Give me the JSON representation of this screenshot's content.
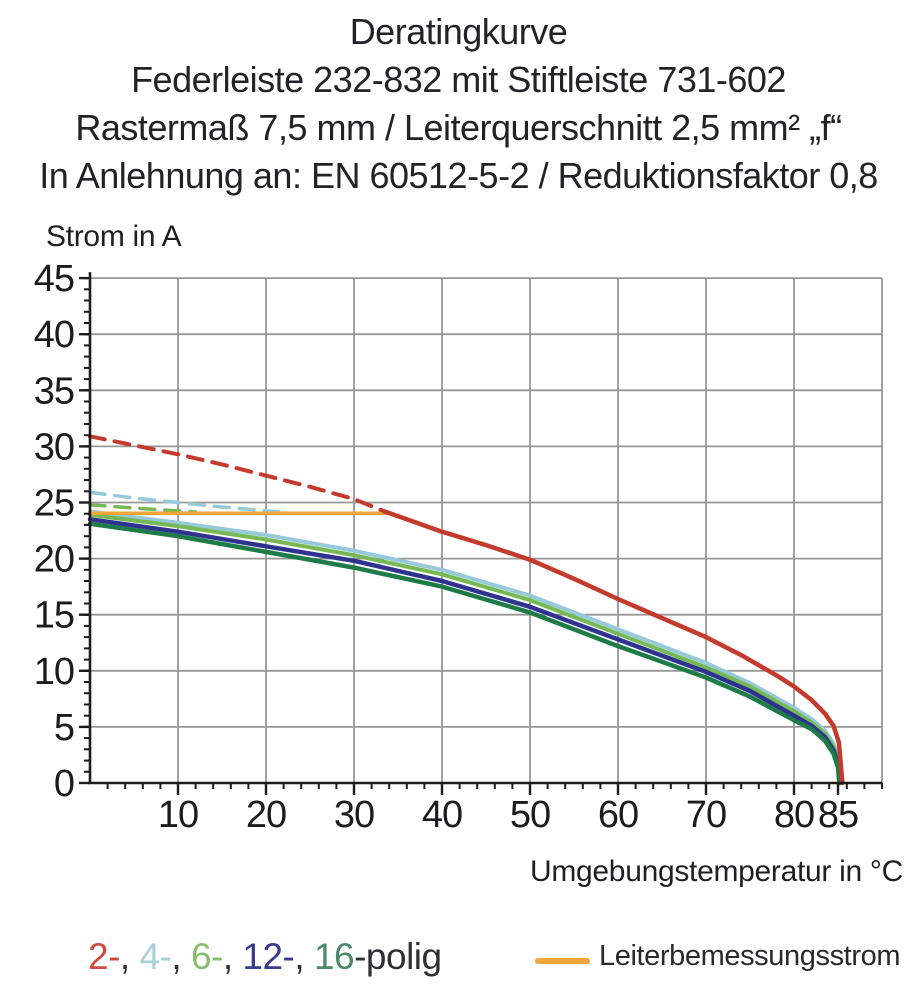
{
  "header": {
    "lines": [
      "Deratingkurve",
      "Federleiste 232-832 mit Stiftleiste 731-602",
      "Rastermaß 7,5 mm / Leiterquerschnitt 2,5 mm² „f“",
      "In Anlehnung an: EN 60512-5-2 / Reduktionsfaktor 0,8"
    ]
  },
  "legend": {
    "pole_items": [
      {
        "text": "2-",
        "color": "#cf4a3e",
        "after": ", "
      },
      {
        "text": "4-",
        "color": "#a9cfdb",
        "after": ", "
      },
      {
        "text": "6-",
        "color": "#85bd68",
        "after": ", "
      },
      {
        "text": "12-",
        "color": "#3a3a8f",
        "after": ", "
      },
      {
        "text": "16",
        "color": "#4b8a68",
        "after": "-polig"
      }
    ],
    "separator_color": "#2f2f34",
    "rated_label": "Leiterbemessungsstrom",
    "rated_color": "#f2a53d"
  },
  "chart_data": {
    "type": "line",
    "title": "Deratingkurve",
    "xlabel": "Umgebungstemperatur in °C",
    "ylabel": "Strom in A",
    "xlim": [
      0,
      90
    ],
    "ylim": [
      0,
      45
    ],
    "xticks_major": [
      10,
      20,
      30,
      40,
      50,
      60,
      70,
      80,
      85
    ],
    "xtick_minor_step": 2,
    "yticks_major": [
      0,
      5,
      10,
      15,
      20,
      25,
      30,
      35,
      40,
      45
    ],
    "ytick_minor_step": 1,
    "grid": {
      "x_step": 10,
      "y_step": 5,
      "color": "#979797"
    },
    "axis_color": "#1c1c1e",
    "rated_current_line": {
      "label": "Leiterbemessungsstrom",
      "value": 24.05,
      "x_from": 0,
      "x_to": 34,
      "color": "#f2a53d"
    },
    "series": [
      {
        "name": "4-polig",
        "color": "#96c9d9",
        "width": 4,
        "dashed": [
          [
            0,
            25.9
          ],
          [
            5,
            25.4
          ],
          [
            10,
            25.0
          ],
          [
            15,
            24.6
          ],
          [
            21.5,
            24.15
          ]
        ],
        "solid": [
          [
            0,
            24.2
          ],
          [
            10,
            23.2
          ],
          [
            20,
            22.1
          ],
          [
            30,
            20.7
          ],
          [
            40,
            19.0
          ],
          [
            50,
            16.7
          ],
          [
            60,
            13.7
          ],
          [
            70,
            10.7
          ],
          [
            75,
            8.9
          ],
          [
            80,
            6.7
          ],
          [
            82,
            5.7
          ],
          [
            83.5,
            4.7
          ],
          [
            84.5,
            3.5
          ],
          [
            85.0,
            2.2
          ],
          [
            85.35,
            0
          ]
        ]
      },
      {
        "name": "6-polig",
        "color": "#76b954",
        "width": 4,
        "dashed": [
          [
            0,
            24.8
          ],
          [
            5,
            24.5
          ],
          [
            12,
            24.15
          ]
        ],
        "solid": [
          [
            0,
            23.9
          ],
          [
            10,
            22.9
          ],
          [
            20,
            21.7
          ],
          [
            30,
            20.3
          ],
          [
            40,
            18.6
          ],
          [
            50,
            16.3
          ],
          [
            60,
            13.3
          ],
          [
            70,
            10.3
          ],
          [
            75,
            8.6
          ],
          [
            80,
            6.4
          ],
          [
            82,
            5.4
          ],
          [
            83.5,
            4.4
          ],
          [
            84.5,
            3.2
          ],
          [
            85.0,
            2.0
          ],
          [
            85.3,
            0
          ]
        ]
      },
      {
        "name": "12-polig",
        "color": "#2e3390",
        "width": 4.5,
        "dashed": [],
        "solid": [
          [
            0,
            23.5
          ],
          [
            10,
            22.4
          ],
          [
            20,
            21.1
          ],
          [
            30,
            19.8
          ],
          [
            40,
            18.0
          ],
          [
            50,
            15.7
          ],
          [
            60,
            12.8
          ],
          [
            70,
            9.9
          ],
          [
            75,
            8.2
          ],
          [
            80,
            6.0
          ],
          [
            82,
            5.1
          ],
          [
            83.5,
            4.1
          ],
          [
            84.5,
            2.9
          ],
          [
            85.0,
            1.7
          ],
          [
            85.2,
            0
          ]
        ]
      },
      {
        "name": "16-polig",
        "color": "#1d7b47",
        "width": 4.5,
        "dashed": [],
        "solid": [
          [
            0,
            23.1
          ],
          [
            10,
            22.0
          ],
          [
            20,
            20.6
          ],
          [
            30,
            19.2
          ],
          [
            40,
            17.5
          ],
          [
            50,
            15.2
          ],
          [
            60,
            12.2
          ],
          [
            70,
            9.4
          ],
          [
            75,
            7.7
          ],
          [
            80,
            5.6
          ],
          [
            82,
            4.8
          ],
          [
            83.5,
            3.8
          ],
          [
            84.5,
            2.6
          ],
          [
            85.0,
            1.4
          ],
          [
            85.15,
            0
          ]
        ]
      },
      {
        "name": "2-polig",
        "color": "#c43a2c",
        "width": 4.5,
        "dashed": [
          [
            0,
            30.9
          ],
          [
            5,
            30.1
          ],
          [
            10,
            29.3
          ],
          [
            15,
            28.4
          ],
          [
            20,
            27.4
          ],
          [
            25,
            26.4
          ],
          [
            30,
            25.3
          ],
          [
            33.5,
            24.2
          ]
        ],
        "solid": [
          [
            33.5,
            24.2
          ],
          [
            40,
            22.4
          ],
          [
            45,
            21.2
          ],
          [
            50,
            19.9
          ],
          [
            55,
            18.2
          ],
          [
            60,
            16.4
          ],
          [
            65,
            14.7
          ],
          [
            70,
            13.0
          ],
          [
            74,
            11.4
          ],
          [
            78,
            9.6
          ],
          [
            80,
            8.6
          ],
          [
            82,
            7.4
          ],
          [
            83.5,
            6.2
          ],
          [
            84.5,
            5.1
          ],
          [
            85.1,
            3.6
          ],
          [
            85.5,
            0
          ]
        ]
      }
    ]
  }
}
